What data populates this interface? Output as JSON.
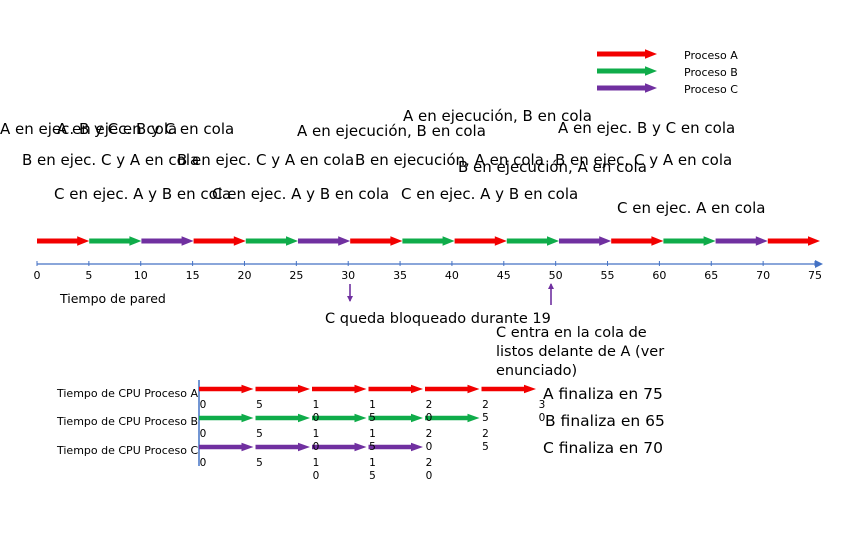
{
  "colors": {
    "A": "#f20000",
    "B": "#0fac4a",
    "C": "#7030a0",
    "axis": "#4472c4"
  },
  "legend": [
    {
      "key": "A",
      "label": "Proceso A"
    },
    {
      "key": "B",
      "label": "Proceso B"
    },
    {
      "key": "C",
      "label": "Proceso C"
    }
  ],
  "state_labels": [
    "A en ejec. B y C en cola",
    "A en ejec. B y C en cola",
    "B en ejec. C y A en cola",
    "B en ejec. C y A en cola",
    "C en ejec. A y B en cola",
    "C en ejec. A y B en cola",
    "A en ejecución, B en cola",
    "B en ejecución, A en cola",
    "C en ejec. A y B en cola",
    "A en ejecución, B en cola",
    "B en ejecución, A en cola",
    "A en ejec. B y C en cola",
    "B en ejec. C y A en cola",
    "C en ejec. A en cola"
  ],
  "timeline": {
    "segments": [
      "A",
      "B",
      "C",
      "A",
      "B",
      "C",
      "A",
      "B",
      "A",
      "B",
      "C",
      "A",
      "B",
      "C",
      "A"
    ],
    "ticks": [
      "0",
      "5",
      "10",
      "15",
      "20",
      "25",
      "30",
      "35",
      "40",
      "45",
      "50",
      "55",
      "60",
      "65",
      "70",
      "75"
    ],
    "axis_label": "Tiempo de pared"
  },
  "annotations": {
    "blocked": "C queda bloqueado durante 19",
    "enters_line1": "C entra en la cola de",
    "enters_line2": "listos delante de A (ver",
    "enters_line3": "enunciado)"
  },
  "cpu": [
    {
      "label": "Tiempo de CPU Proceso A",
      "key": "A",
      "segments": 6,
      "ticks": [
        "0",
        "5",
        "10",
        "15",
        "20",
        "25",
        "30"
      ],
      "finish": "A finaliza en 75"
    },
    {
      "label": "Tiempo de CPU Proceso B",
      "key": "B",
      "segments": 5,
      "ticks": [
        "0",
        "5",
        "10",
        "15",
        "20",
        "25"
      ],
      "finish": "B finaliza en 65"
    },
    {
      "label": "Tiempo de CPU Proceso C",
      "key": "C",
      "segments": 4,
      "ticks": [
        "0",
        "5",
        "10",
        "15",
        "20"
      ],
      "finish": "C finaliza en 70"
    }
  ]
}
